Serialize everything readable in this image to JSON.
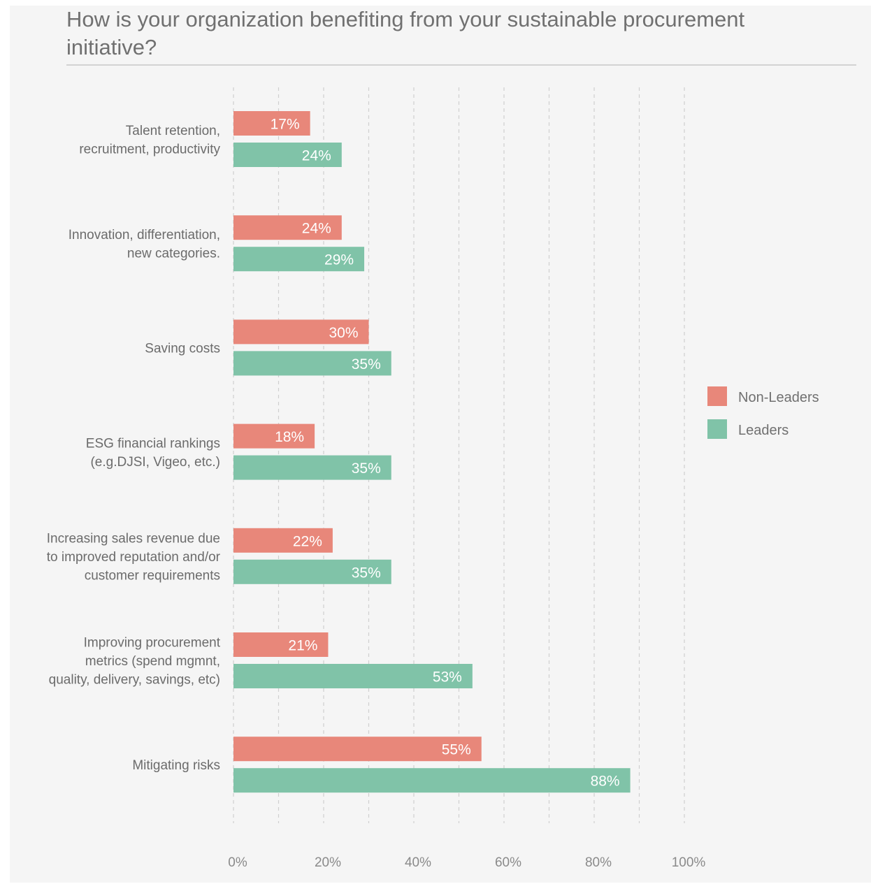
{
  "title": "How is your organization benefiting from your sustainable procurement initiative?",
  "colors": {
    "non_leaders": "#e8877a",
    "leaders": "#80c3a8",
    "grid": "#cfcfcf",
    "background": "#f5f5f5"
  },
  "chart_data": {
    "type": "bar",
    "orientation": "horizontal",
    "title": "How is your organization benefiting from your sustainable procurement initiative?",
    "categories": [
      [
        "Talent retention,",
        "recruitment, productivity"
      ],
      [
        "Innovation, differentiation,",
        "new categories."
      ],
      [
        "Saving costs"
      ],
      [
        "ESG financial rankings",
        "(e.g.DJSI, Vigeo, etc.)"
      ],
      [
        "Increasing sales revenue due",
        "to improved reputation and/or",
        "customer requirements"
      ],
      [
        "Improving procurement",
        "metrics (spend mgmnt,",
        "quality, delivery, savings, etc)"
      ],
      [
        "Mitigating risks"
      ]
    ],
    "series": [
      {
        "name": "Non-Leaders",
        "color": "#e8877a",
        "values": [
          17,
          24,
          30,
          18,
          22,
          21,
          55
        ]
      },
      {
        "name": "Leaders",
        "color": "#80c3a8",
        "values": [
          24,
          29,
          35,
          35,
          35,
          53,
          88
        ]
      }
    ],
    "xlim": [
      0,
      100
    ],
    "x_ticks": [
      0,
      20,
      40,
      60,
      80,
      100
    ],
    "x_tick_labels": [
      "0%",
      "20%",
      "40%",
      "60%",
      "80%",
      "100%"
    ],
    "value_suffix": "%",
    "grid": true,
    "legend_position": "right"
  }
}
